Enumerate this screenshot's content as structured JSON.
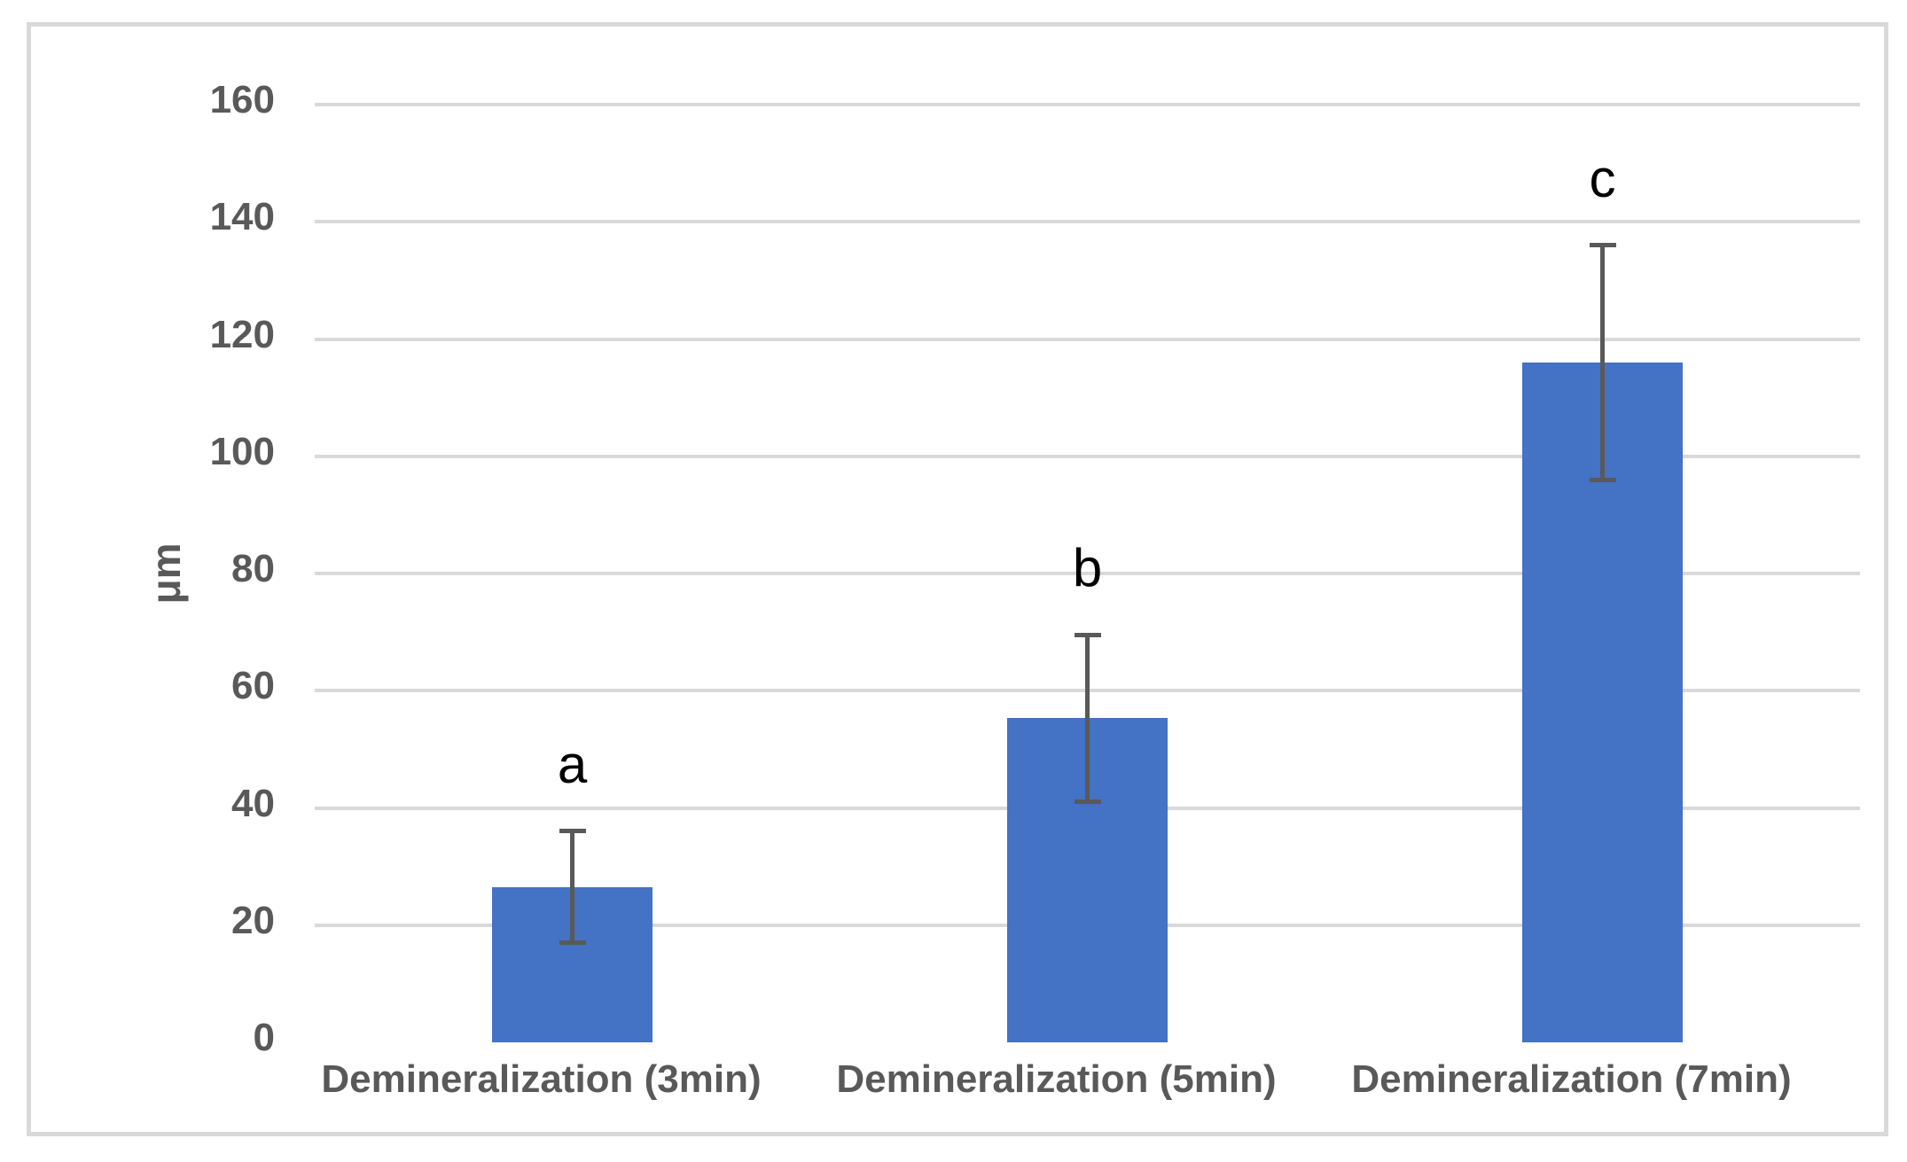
{
  "chart_data": {
    "type": "bar",
    "title": "",
    "ylabel": "μm",
    "xlabel": "",
    "categories": [
      "Demineralization (3min)",
      "Demineralization (5min)",
      "Demineralization (7min)"
    ],
    "values": [
      26.5,
      55.3,
      116
    ],
    "errors": [
      9.5,
      14.2,
      20
    ],
    "significance_letters": [
      "a",
      "b",
      "c"
    ],
    "yticks": [
      0,
      20,
      40,
      60,
      80,
      100,
      120,
      140,
      160
    ],
    "ylim": [
      0,
      160
    ],
    "grid": "horizontal-only",
    "legend": "none",
    "colors": {
      "bar": "#4472C4",
      "error_bar": "#595959",
      "axis_text": "#595959",
      "letter": "#000000",
      "gridline": "#d9d9d9",
      "frame_border": "#d9d9d9",
      "background": "#ffffff"
    }
  }
}
